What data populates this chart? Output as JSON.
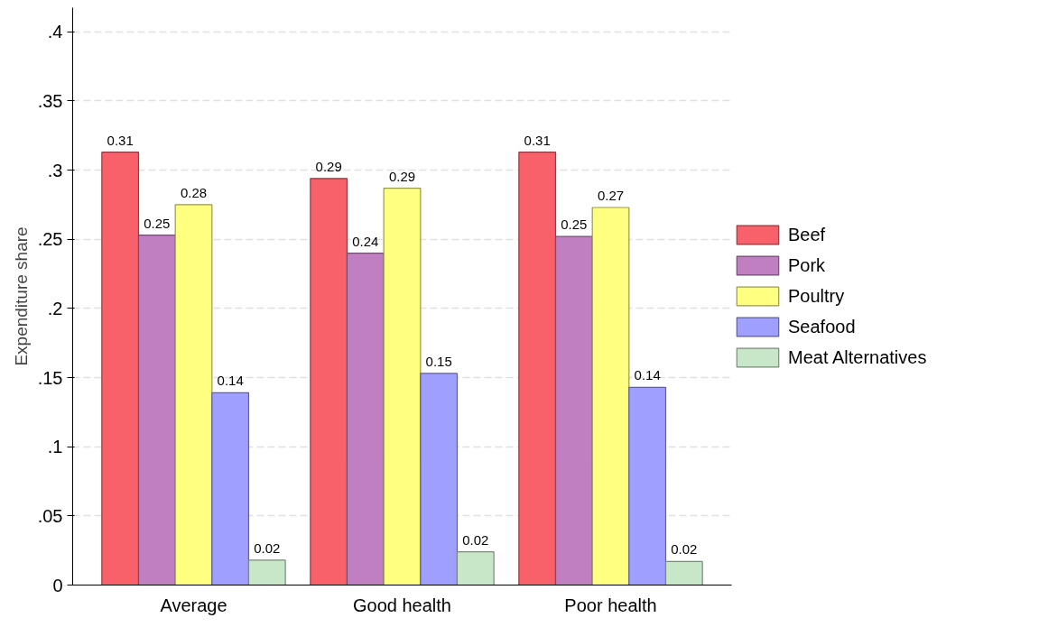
{
  "chart_data": {
    "type": "bar",
    "ylabel": "Expenditure share",
    "categories": [
      "Average",
      "Good health",
      "Poor health"
    ],
    "series": [
      {
        "name": "Beef",
        "color": "#f8606a",
        "values": [
          0.313,
          0.294,
          0.313
        ],
        "value_labels": [
          "0.31",
          "0.29",
          "0.31"
        ]
      },
      {
        "name": "Pork",
        "color": "#bf7fc0",
        "values": [
          0.253,
          0.24,
          0.252
        ],
        "value_labels": [
          "0.25",
          "0.24",
          "0.25"
        ]
      },
      {
        "name": "Poultry",
        "color": "#ffff80",
        "values": [
          0.275,
          0.287,
          0.273
        ],
        "value_labels": [
          "0.28",
          "0.29",
          "0.27"
        ]
      },
      {
        "name": "Seafood",
        "color": "#9f9fff",
        "values": [
          0.139,
          0.153,
          0.143
        ],
        "value_labels": [
          "0.14",
          "0.15",
          "0.14"
        ]
      },
      {
        "name": "Meat Alternatives",
        "color": "#c8e6c8",
        "values": [
          0.018,
          0.024,
          0.017
        ],
        "value_labels": [
          "0.02",
          "0.02",
          "0.02"
        ]
      }
    ],
    "ylim": [
      0,
      0.4175
    ],
    "yticks": [
      {
        "value": 0,
        "label": "0"
      },
      {
        "value": 0.05,
        "label": ".05"
      },
      {
        "value": 0.1,
        "label": ".1"
      },
      {
        "value": 0.15,
        "label": ".15"
      },
      {
        "value": 0.2,
        "label": ".2"
      },
      {
        "value": 0.25,
        "label": ".25"
      },
      {
        "value": 0.3,
        "label": ".3"
      },
      {
        "value": 0.35,
        "label": ".35"
      },
      {
        "value": 0.4,
        "label": ".4"
      }
    ],
    "grid": "y",
    "legend": "right"
  }
}
